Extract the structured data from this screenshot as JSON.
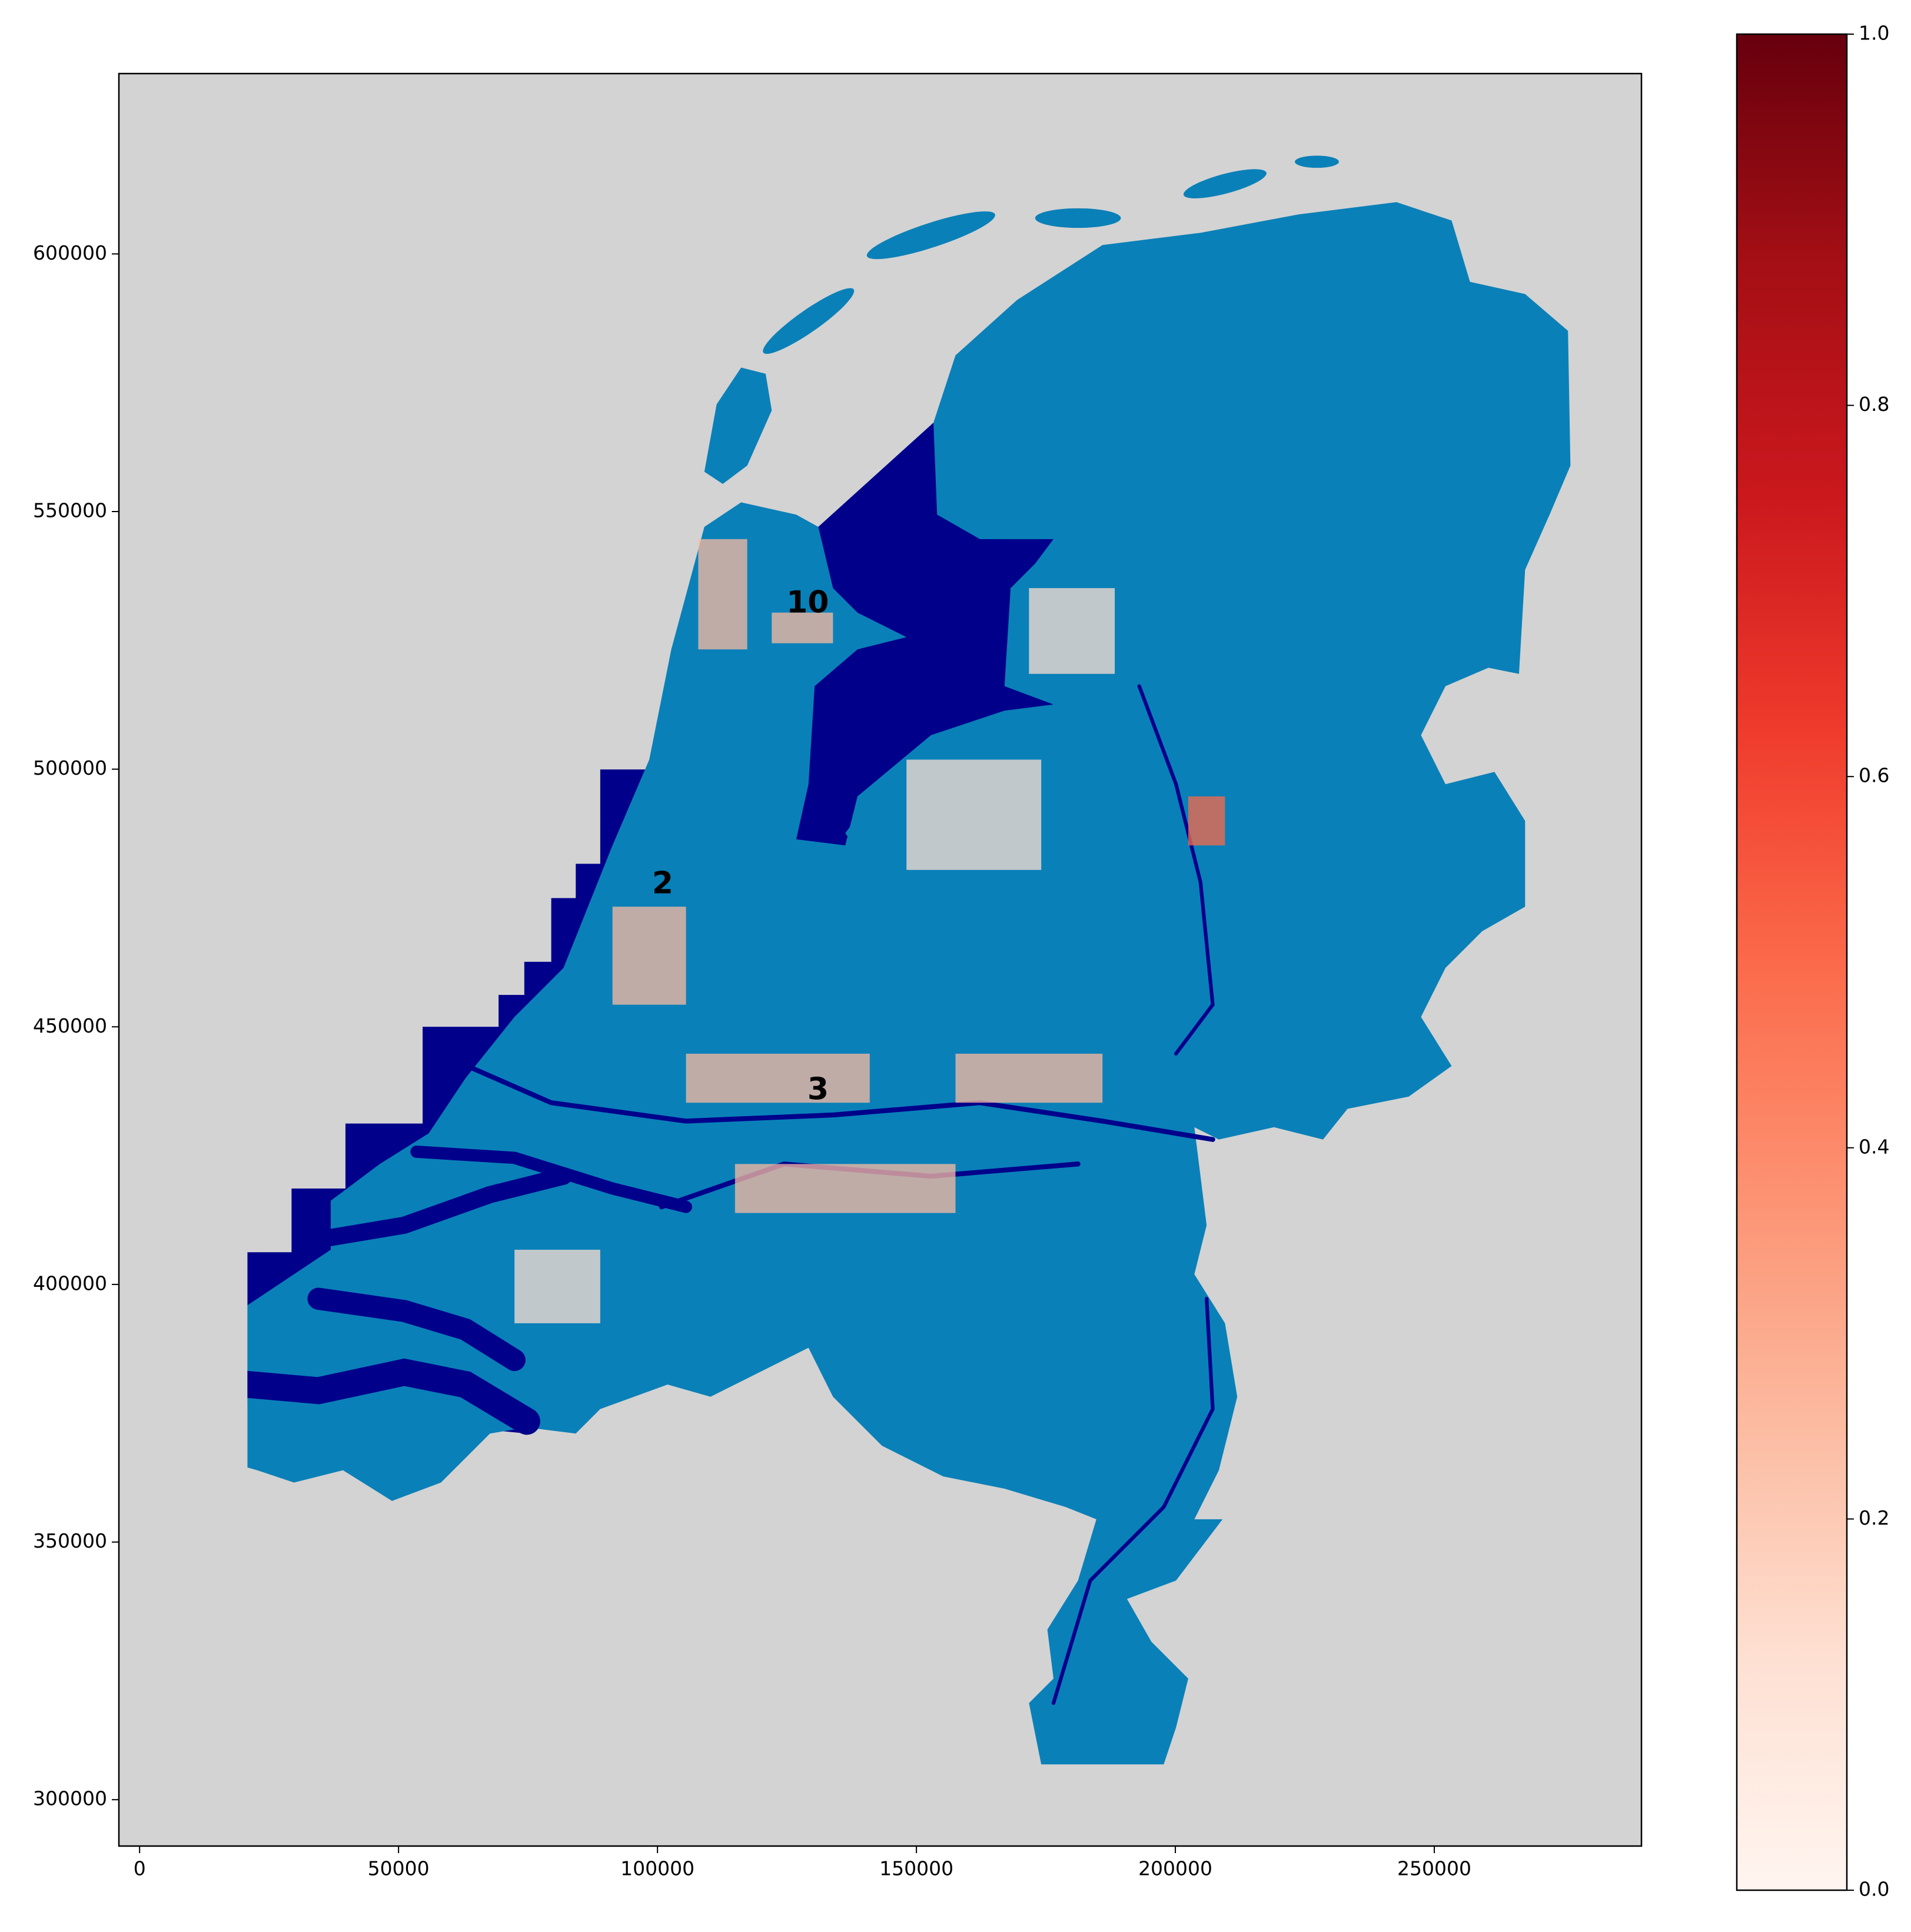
{
  "chart_data": {
    "type": "map",
    "xlim": [
      -4000,
      290000
    ],
    "ylim": [
      291000,
      635000
    ],
    "xticks": [
      0,
      50000,
      100000,
      150000,
      200000,
      250000
    ],
    "yticks": [
      300000,
      350000,
      400000,
      450000,
      500000,
      550000,
      600000
    ],
    "background": "#d3d3d3",
    "annotations": [
      {
        "text": "10",
        "x": 129000,
        "y": 532000
      },
      {
        "text": "2",
        "x": 101000,
        "y": 477500
      },
      {
        "text": "3",
        "x": 131000,
        "y": 437500
      }
    ],
    "colorbar": {
      "cmap": "Reds",
      "colors": [
        "#fff5f0",
        "#fee0d2",
        "#fcbba1",
        "#fc9272",
        "#fb6a4a",
        "#ef3b2c",
        "#cb181d",
        "#a50f15",
        "#67000d"
      ],
      "lim": [
        0,
        1
      ],
      "ticks": [
        {
          "value": 0,
          "label": "0.0"
        },
        {
          "value": 0.2,
          "label": "0.2"
        },
        {
          "value": 0.4,
          "label": "0.4"
        },
        {
          "value": 0.6,
          "label": "0.6"
        },
        {
          "value": 0.8,
          "label": "0.8"
        },
        {
          "value": 1,
          "label": "1.0"
        }
      ]
    }
  }
}
